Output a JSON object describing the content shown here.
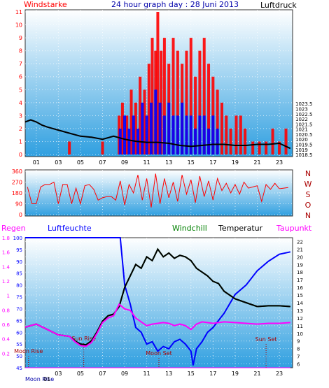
{
  "title": "24 hour graph day : 28 Juni 2013",
  "colors": {
    "wind": "#ff0000",
    "gust": "#0000ff",
    "pressure": "#000000",
    "direction": "#ff0000",
    "regen": "#ff00ff",
    "luftfeuchte": "#0000ff",
    "windchill": "#008000",
    "temperatur": "#000000",
    "taupunkt": "#ff00ff",
    "panel_top": "#ffffff",
    "panel_bottom": "#2f9fe0"
  },
  "chart_data": [
    {
      "type": "bar+line",
      "panel": "wind-pressure",
      "left_axis_label": "Windstarke",
      "right_axis_label": "Luftdruck",
      "ylim_left": [
        0,
        11
      ],
      "yticks_left": [
        "0",
        "1",
        "2",
        "3",
        "4",
        "5",
        "6",
        "7",
        "8",
        "9",
        "10",
        "11"
      ],
      "ylim_right": [
        1018.3,
        1032.7
      ],
      "yticks_right": [
        "1018.5",
        "1019",
        "1019.5",
        "1020",
        "1020.5",
        "1021",
        "1021.5",
        "1022",
        "1022.5",
        "1023",
        "1023.5"
      ],
      "xlim": [
        0,
        24.2
      ],
      "xticks": [
        "01",
        "03",
        "05",
        "07",
        "09",
        "11",
        "13",
        "15",
        "17",
        "19",
        "21",
        "23"
      ],
      "pressure": {
        "x": [
          0,
          0.5,
          1,
          1.5,
          2,
          3,
          4,
          5,
          6,
          7,
          8,
          9,
          10,
          11,
          12,
          13,
          14,
          15,
          16,
          17,
          18,
          19,
          20,
          21,
          22,
          23,
          24
        ],
        "y": [
          1021.7,
          1021.9,
          1021.7,
          1021.4,
          1021.2,
          1020.9,
          1020.6,
          1020.3,
          1020.2,
          1020.0,
          1020.3,
          1020.0,
          1019.8,
          1019.7,
          1019.7,
          1019.6,
          1019.4,
          1019.3,
          1019.4,
          1019.5,
          1019.5,
          1019.4,
          1019.4,
          1019.5,
          1019.5,
          1019.6,
          1019.1
        ]
      },
      "wind": {
        "x": [
          4.0,
          7.0,
          8.5,
          8.8,
          9.2,
          9.6,
          10.0,
          10.4,
          10.8,
          11.2,
          11.5,
          11.8,
          12.0,
          12.3,
          12.6,
          13.0,
          13.4,
          13.8,
          14.2,
          14.6,
          15.0,
          15.4,
          15.8,
          16.2,
          16.6,
          17.0,
          17.4,
          17.8,
          18.2,
          18.6,
          19.1,
          19.5,
          19.9,
          20.6,
          21.2,
          21.8,
          22.4,
          23.0,
          23.6
        ],
        "values": [
          1,
          1,
          3,
          4,
          3,
          5,
          4,
          6,
          5,
          7,
          9,
          8,
          11,
          8,
          9,
          7,
          9,
          8,
          7,
          8,
          9,
          6,
          8,
          9,
          7,
          6,
          5,
          4,
          3,
          2,
          3,
          3,
          2,
          1,
          1,
          1,
          2,
          1,
          2
        ]
      },
      "gust": {
        "x": [
          8.6,
          9.0,
          9.4,
          9.8,
          10.2,
          10.6,
          11.0,
          11.4,
          11.8,
          12.2,
          12.6,
          13.0,
          13.4,
          13.8,
          14.2,
          14.6,
          15.0,
          15.4,
          15.8,
          16.2,
          16.6,
          17.0,
          17.4
        ],
        "values": [
          2,
          3,
          2,
          3,
          2,
          4,
          3,
          4,
          5,
          4,
          3,
          4,
          3,
          3,
          4,
          3,
          3,
          2,
          3,
          3,
          2,
          3,
          2
        ]
      }
    },
    {
      "type": "line",
      "panel": "wind-direction",
      "right_axis_label": "N W S O N",
      "ylim": [
        0,
        360
      ],
      "yticks": [
        "0",
        "90",
        "180",
        "270",
        "360"
      ],
      "xlim": [
        0,
        24.2
      ],
      "direction": {
        "x": [
          0.2,
          0.6,
          1.0,
          1.4,
          1.8,
          2.2,
          2.6,
          3.0,
          3.4,
          3.8,
          4.2,
          4.6,
          5.0,
          5.4,
          5.8,
          6.2,
          6.6,
          7.0,
          7.4,
          7.8,
          8.2,
          8.6,
          9.0,
          9.4,
          9.8,
          10.2,
          10.6,
          11.0,
          11.4,
          11.8,
          12.2,
          12.6,
          13.0,
          13.4,
          13.8,
          14.2,
          14.6,
          15.0,
          15.4,
          15.8,
          16.2,
          16.6,
          17.0,
          17.4,
          17.8,
          18.2,
          18.6,
          19.0,
          19.4,
          19.8,
          20.2,
          20.6,
          21.0,
          21.4,
          21.8,
          22.2,
          22.6,
          23.0,
          23.4,
          23.8
        ],
        "y": [
          230,
          90,
          90,
          230,
          250,
          250,
          270,
          90,
          250,
          250,
          90,
          220,
          90,
          240,
          250,
          210,
          120,
          140,
          150,
          150,
          120,
          280,
          80,
          250,
          180,
          330,
          120,
          300,
          60,
          340,
          90,
          300,
          140,
          270,
          110,
          330,
          170,
          290,
          100,
          320,
          150,
          280,
          120,
          300,
          200,
          260,
          180,
          250,
          170,
          270,
          220,
          230,
          240,
          110,
          250,
          210,
          260,
          215,
          220,
          225
        ]
      }
    },
    {
      "type": "line",
      "panel": "temperature-humidity",
      "legend": [
        "Regen",
        "Luftfeuchte",
        "Windchill",
        "Temperatur",
        "Taupunkt"
      ],
      "ylim_regen": [
        0,
        1.8
      ],
      "yticks_regen": [
        "0",
        "0.2",
        "0.4",
        "0.6",
        "0.8",
        "1",
        "1.2",
        "1.4",
        "1.6",
        "1.8"
      ],
      "ylim_luftfeuchte": [
        45,
        100
      ],
      "yticks_luftfeuchte": [
        "45",
        "50",
        "55",
        "60",
        "65",
        "70",
        "75",
        "80",
        "85",
        "90",
        "95",
        "100"
      ],
      "ylim_temp": [
        5.5,
        22.5
      ],
      "yticks_temp": [
        "6",
        "7",
        "8",
        "9",
        "10",
        "11",
        "12",
        "13",
        "14",
        "15",
        "16",
        "17",
        "18",
        "19",
        "20",
        "21",
        "22"
      ],
      "xlim": [
        0,
        24.2
      ],
      "xticks": [
        "01",
        "03",
        "05",
        "07",
        "09",
        "11",
        "13",
        "15",
        "17",
        "19",
        "21",
        "23"
      ],
      "temperatur": {
        "x": [
          0,
          1,
          2,
          3,
          4,
          4.5,
          5,
          5.5,
          6,
          6.5,
          7,
          7.5,
          8,
          8.5,
          9,
          9.5,
          10,
          10.5,
          11,
          11.5,
          12,
          12.5,
          13,
          13.5,
          14,
          14.5,
          15,
          15.5,
          16,
          16.5,
          17,
          17.5,
          18,
          19,
          20,
          21,
          22,
          23,
          24
        ],
        "y": [
          10.8,
          11.2,
          10.5,
          9.8,
          9.6,
          9.0,
          8.6,
          8.5,
          9.0,
          10.2,
          11.6,
          12.3,
          12.5,
          13.5,
          16.0,
          17.5,
          19.0,
          18.5,
          20.0,
          19.5,
          21.0,
          20.0,
          20.5,
          19.8,
          20.2,
          20.0,
          19.5,
          18.5,
          18.0,
          17.5,
          16.8,
          16.5,
          15.5,
          14.5,
          14.0,
          13.5,
          13.6,
          13.6,
          13.5
        ]
      },
      "windchill": {
        "x": [
          0,
          1,
          2,
          3,
          4,
          4.5,
          5,
          5.5,
          6,
          6.5,
          7,
          7.5,
          8,
          8.5,
          9,
          9.5,
          10,
          10.5,
          11,
          11.5,
          12,
          12.5,
          13,
          13.5,
          14,
          14.5,
          15,
          15.5,
          16,
          16.5,
          17,
          17.5,
          18,
          19,
          20,
          21,
          22,
          23,
          24
        ],
        "y": [
          10.8,
          11.2,
          10.5,
          9.8,
          9.6,
          9.0,
          8.6,
          8.5,
          9.0,
          10.2,
          11.6,
          12.3,
          12.5,
          13.5,
          16.0,
          17.5,
          19.0,
          18.5,
          20.0,
          19.5,
          21.0,
          20.0,
          20.5,
          19.8,
          20.2,
          20.0,
          19.5,
          18.5,
          18.0,
          17.5,
          16.8,
          16.5,
          15.5,
          14.5,
          14.0,
          13.5,
          13.6,
          13.6,
          13.5
        ]
      },
      "taupunkt": {
        "x": [
          0,
          1,
          2,
          3,
          4,
          4.5,
          5,
          5.5,
          6,
          6.5,
          7,
          7.5,
          8,
          8.5,
          9,
          9.5,
          10,
          10.5,
          11,
          11.5,
          12,
          12.5,
          13,
          13.5,
          14,
          14.5,
          15,
          15.5,
          16,
          17,
          18,
          19,
          20,
          21,
          22,
          23,
          24
        ],
        "y": [
          10.8,
          11.2,
          10.5,
          9.8,
          9.6,
          8.9,
          8.4,
          8.3,
          8.8,
          10.0,
          11.4,
          12.0,
          12.3,
          13.8,
          13.2,
          13.0,
          12.0,
          11.5,
          11.0,
          11.2,
          11.3,
          11.4,
          11.3,
          11.0,
          11.2,
          11.0,
          10.5,
          11.2,
          11.5,
          11.3,
          11.5,
          11.4,
          11.3,
          11.2,
          11.3,
          11.3,
          11.4
        ]
      },
      "luftfeuchte": {
        "x": [
          0,
          1,
          2,
          3,
          4,
          5,
          6,
          7,
          8,
          8.6,
          9,
          9.5,
          10,
          10.5,
          11,
          11.5,
          12,
          12.5,
          13,
          13.5,
          14,
          14.5,
          15,
          15.2,
          15.5,
          16,
          16.5,
          17,
          17.5,
          18,
          18.5,
          19,
          20,
          21,
          22,
          23,
          24
        ],
        "y": [
          100,
          100,
          100,
          100,
          100,
          100,
          100,
          100,
          100,
          100,
          80,
          72,
          62,
          60,
          55,
          56,
          52,
          54,
          53,
          56,
          57,
          55,
          52,
          46,
          53,
          56,
          60,
          62,
          65,
          68,
          72,
          76,
          80,
          86,
          90,
          93,
          94
        ]
      },
      "regen": {
        "x": [
          0,
          24
        ],
        "y": [
          0,
          0
        ]
      },
      "annotations": {
        "moon_rise": "Moon Rise",
        "sun_rise": "Sun Rise",
        "moon_set": "Moon Set",
        "sun_set": "Sun Set",
        "moon_rise_bottom": "Moon Rise",
        "bottom_start": "01"
      },
      "event_hours": {
        "moon_rise": 0.3,
        "sun_rise": 5.3,
        "moon_set": 12.1,
        "sun_set": 21.8
      }
    }
  ]
}
